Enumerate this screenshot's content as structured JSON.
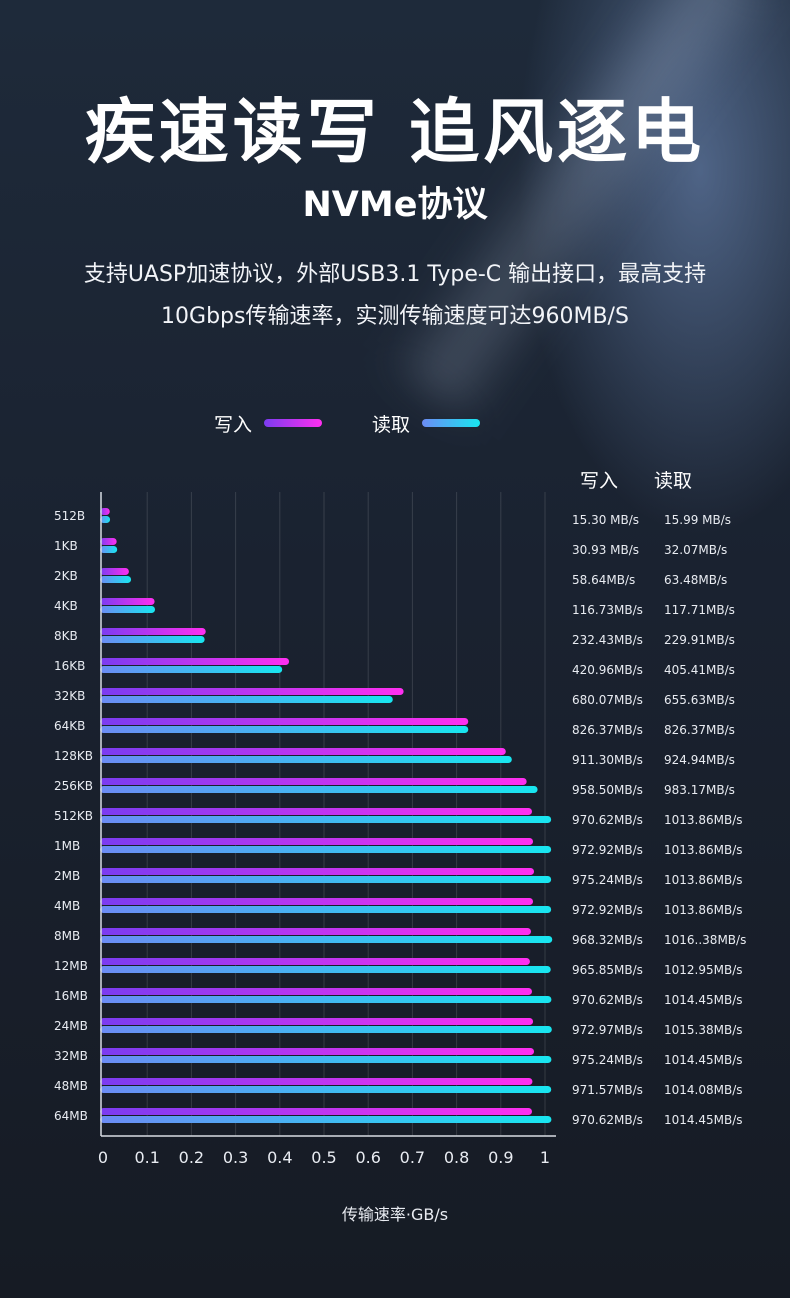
{
  "header": {
    "title": "疾速读写 追风逐电",
    "subtitle": "NVMe协议",
    "desc_line1": "支持UASP加速协议，外部USB3.1 Type-C 输出接口，最高支持",
    "desc_line2": "10Gbps传输速率，实测传输速度可达960MB/S"
  },
  "legend": {
    "write_label": "写入",
    "read_label": "读取"
  },
  "table_header": {
    "write": "写入",
    "read": "读取"
  },
  "colors": {
    "write_start": "#7b3cf0",
    "write_end": "#ff2ff0",
    "read_start": "#6c8cf5",
    "read_end": "#18e6f0"
  },
  "chart_data": {
    "type": "bar",
    "orientation": "horizontal",
    "categories": [
      "512B",
      "1KB",
      "2KB",
      "4KB",
      "8KB",
      "16KB",
      "32KB",
      "64KB",
      "128KB",
      "256KB",
      "512KB",
      "1MB",
      "2MB",
      "4MB",
      "8MB",
      "12MB",
      "16MB",
      "24MB",
      "32MB",
      "48MB",
      "64MB"
    ],
    "series": [
      {
        "name": "写入",
        "values": [
          0.0153,
          0.0309,
          0.0586,
          0.1167,
          0.2324,
          0.421,
          0.6801,
          0.8264,
          0.9113,
          0.9585,
          0.9706,
          0.9729,
          0.9752,
          0.9729,
          0.9683,
          0.9659,
          0.9706,
          0.973,
          0.9752,
          0.9716,
          0.9706
        ]
      },
      {
        "name": "读取",
        "values": [
          0.016,
          0.0321,
          0.0635,
          0.1177,
          0.2299,
          0.4054,
          0.6556,
          0.8264,
          0.9249,
          0.9832,
          1.0139,
          1.0139,
          1.0139,
          1.0139,
          1.0164,
          1.013,
          1.0145,
          1.0154,
          1.0145,
          1.0141,
          1.0145
        ]
      }
    ],
    "value_labels_write": [
      "15.30 MB/s",
      "30.93 MB/s",
      "58.64MB/s",
      "116.73MB/s",
      "232.43MB/s",
      "420.96MB/s",
      "680.07MB/s",
      "826.37MB/s",
      "911.30MB/s",
      "958.50MB/s",
      "970.62MB/s",
      "972.92MB/s",
      "975.24MB/s",
      "972.92MB/s",
      "968.32MB/s",
      "965.85MB/s",
      "970.62MB/s",
      "972.97MB/s",
      "975.24MB/s",
      "971.57MB/s",
      "970.62MB/s"
    ],
    "value_labels_read": [
      "15.99 MB/s",
      "32.07MB/s",
      "63.48MB/s",
      "117.71MB/s",
      "229.91MB/s",
      "405.41MB/s",
      "655.63MB/s",
      "826.37MB/s",
      "924.94MB/s",
      "983.17MB/s",
      "1013.86MB/s",
      "1013.86MB/s",
      "1013.86MB/s",
      "1013.86MB/s",
      "1016..38MB/s",
      "1012.95MB/s",
      "1014.45MB/s",
      "1015.38MB/s",
      "1014.45MB/s",
      "1014.08MB/s",
      "1014.45MB/s"
    ],
    "x_ticks": [
      "0",
      "0.1",
      "0.2",
      "0.3",
      "0.4",
      "0.5",
      "0.6",
      "0.7",
      "0.8",
      "0.9",
      "1"
    ],
    "xlim": [
      0,
      1
    ],
    "xlabel": "传输速率·GB/s",
    "grid": true
  }
}
